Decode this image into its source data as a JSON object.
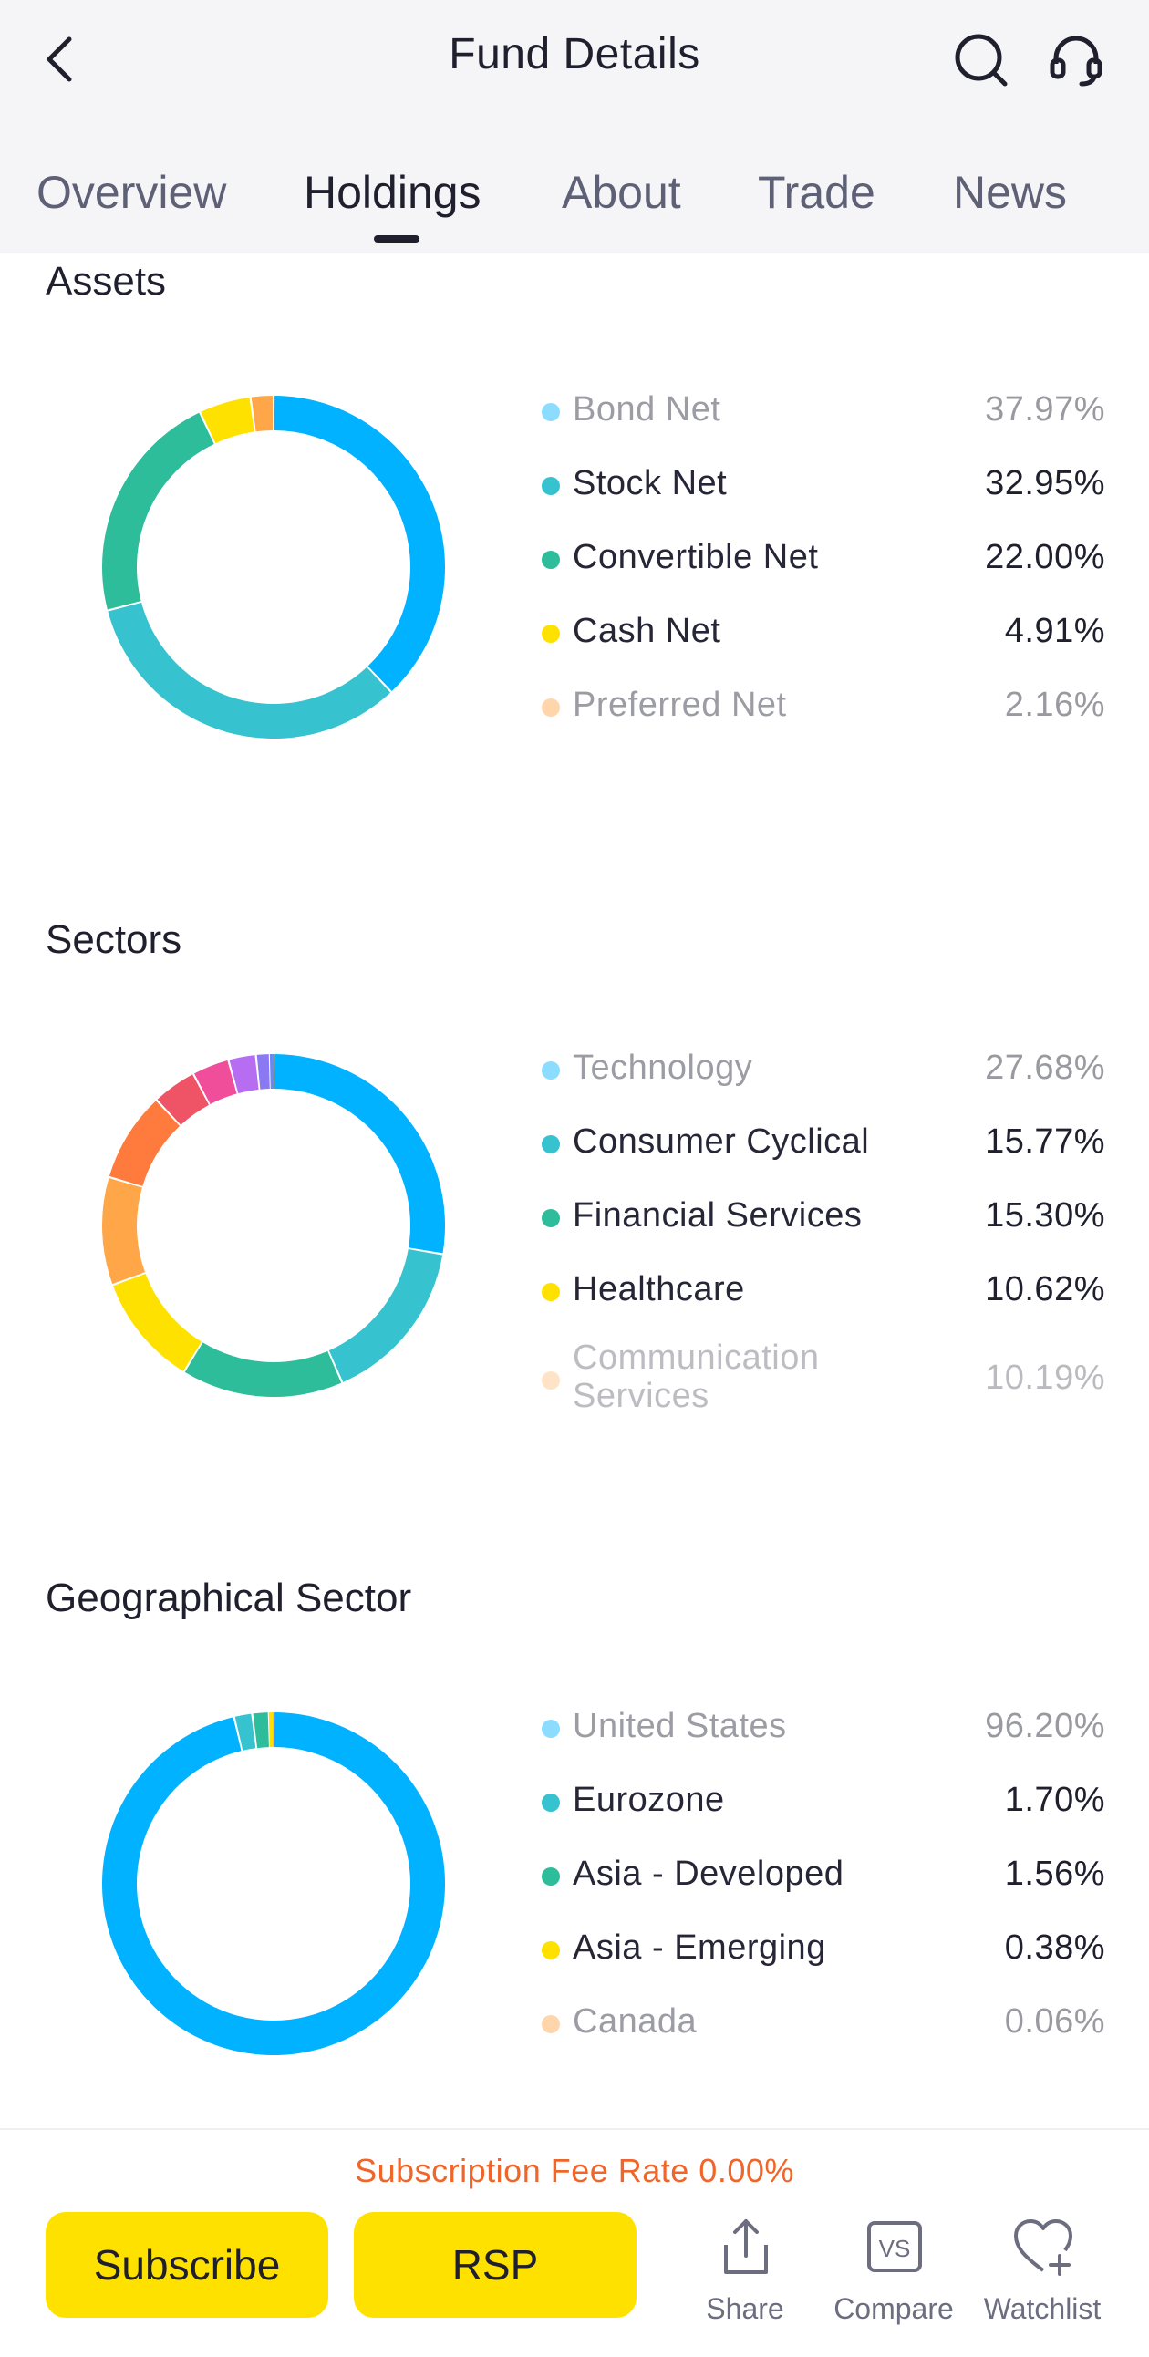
{
  "header": {
    "title": "Fund Details",
    "back_icon": "chevron-left-icon",
    "search_icon": "search-icon",
    "support_icon": "headset-icon"
  },
  "tabs": [
    {
      "label": "Overview",
      "active": false
    },
    {
      "label": "Holdings",
      "active": true
    },
    {
      "label": "About",
      "active": false
    },
    {
      "label": "Trade",
      "active": false
    },
    {
      "label": "News",
      "active": false
    }
  ],
  "sections": {
    "assets": {
      "title": "Assets",
      "items": [
        {
          "label": "Bond Net",
          "value": "37.97%",
          "color": "#00b2ff"
        },
        {
          "label": "Stock Net",
          "value": "32.95%",
          "color": "#36c3cf"
        },
        {
          "label": "Convertible Net",
          "value": "22.00%",
          "color": "#2dbd9b"
        },
        {
          "label": "Cash Net",
          "value": "4.91%",
          "color": "#ffe100"
        },
        {
          "label": "Preferred Net",
          "value": "2.16%",
          "color": "#ffa648"
        }
      ]
    },
    "sectors": {
      "title": "Sectors",
      "items": [
        {
          "label": "Technology",
          "value": "27.68%",
          "color": "#00b2ff"
        },
        {
          "label": "Consumer Cyclical",
          "value": "15.77%",
          "color": "#36c3cf"
        },
        {
          "label": "Financial Services",
          "value": "15.30%",
          "color": "#2dbd9b"
        },
        {
          "label": "Healthcare",
          "value": "10.62%",
          "color": "#ffe100"
        },
        {
          "label": "Communication Services",
          "value": "10.19%",
          "color": "#ffa648"
        }
      ]
    },
    "geo": {
      "title": "Geographical Sector",
      "items": [
        {
          "label": "United States",
          "value": "96.20%",
          "color": "#00b2ff"
        },
        {
          "label": "Eurozone",
          "value": "1.70%",
          "color": "#36c3cf"
        },
        {
          "label": "Asia - Developed",
          "value": "1.56%",
          "color": "#2dbd9b"
        },
        {
          "label": "Asia - Emerging",
          "value": "0.38%",
          "color": "#ffe100"
        },
        {
          "label": "Canada",
          "value": "0.06%",
          "color": "#ffa648"
        }
      ]
    }
  },
  "chart_data": [
    {
      "type": "pie",
      "title": "Assets",
      "categories": [
        "Bond Net",
        "Stock Net",
        "Convertible Net",
        "Cash Net",
        "Preferred Net"
      ],
      "values": [
        37.97,
        32.95,
        22.0,
        4.91,
        2.16
      ],
      "colors": [
        "#00b2ff",
        "#36c3cf",
        "#2dbd9b",
        "#ffe100",
        "#ffa648"
      ]
    },
    {
      "type": "pie",
      "title": "Sectors",
      "categories": [
        "Technology",
        "Consumer Cyclical",
        "Financial Services",
        "Healthcare",
        "Communication Services"
      ],
      "values": [
        27.68,
        15.77,
        15.3,
        10.62,
        10.19
      ],
      "colors": [
        "#00b2ff",
        "#36c3cf",
        "#2dbd9b",
        "#ffe100",
        "#ffa648"
      ],
      "other_values": [
        8.5,
        4.2,
        3.5,
        2.6,
        1.3,
        0.35
      ],
      "other_colors": [
        "#ff7a3d",
        "#ee5466",
        "#f04d9a",
        "#b66df2",
        "#8a79f2",
        "#6b8af0"
      ]
    },
    {
      "type": "pie",
      "title": "Geographical Sector",
      "categories": [
        "United States",
        "Eurozone",
        "Asia - Developed",
        "Asia - Emerging",
        "Canada"
      ],
      "values": [
        96.2,
        1.7,
        1.56,
        0.38,
        0.06
      ],
      "colors": [
        "#00b2ff",
        "#36c3cf",
        "#2dbd9b",
        "#ffe100",
        "#ffa648"
      ]
    }
  ],
  "footer": {
    "fee_text": "Subscription Fee Rate 0.00%",
    "subscribe_label": "Subscribe",
    "rsp_label": "RSP",
    "share_label": "Share",
    "compare_label": "Compare",
    "watchlist_label": "Watchlist"
  }
}
